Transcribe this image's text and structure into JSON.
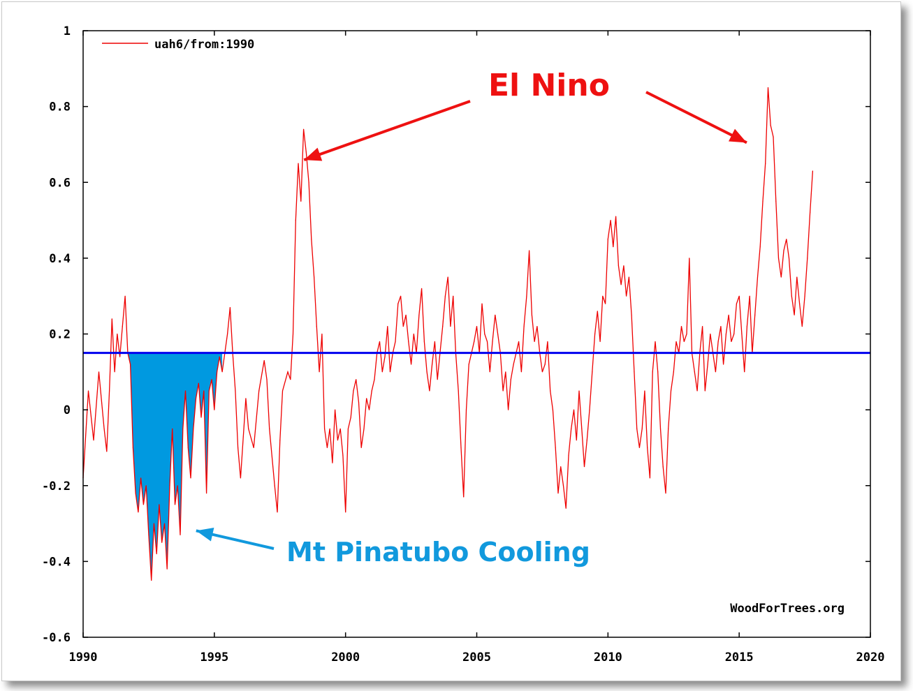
{
  "chart_data": {
    "type": "line",
    "xlim": [
      1990,
      2020
    ],
    "ylim": [
      -0.6,
      1.0
    ],
    "x_ticks": [
      "1990",
      "1995",
      "2000",
      "2005",
      "2010",
      "2015",
      "2020"
    ],
    "y_ticks": [
      "1",
      "0.8",
      "0.6",
      "0.4",
      "0.2",
      "0",
      "-0.2",
      "-0.4",
      "-0.6"
    ],
    "legend": {
      "label": "uah6/from:1990",
      "position": "top-left"
    },
    "credit": "WoodForTrees.org",
    "baseline": {
      "value": 0.15,
      "color": "#0000ee"
    },
    "fill_region": {
      "x_start": 1991.7,
      "x_end": 1995.3,
      "color": "#0099e0"
    },
    "annotations": {
      "el_nino": {
        "text": "El Nino",
        "color": "#ee1111",
        "points_to": [
          [
            1998.1,
            0.65
          ],
          [
            2015.5,
            0.69
          ]
        ]
      },
      "pinatubo": {
        "text": "Mt Pinatubo Cooling",
        "color": "#1199dd",
        "points_to": [
          [
            1994.2,
            -0.33
          ]
        ]
      }
    },
    "series": [
      {
        "name": "uah6/from:1990",
        "color": "#ee0000",
        "points": [
          [
            1990.0,
            -0.18
          ],
          [
            1990.2,
            0.05
          ],
          [
            1990.4,
            -0.08
          ],
          [
            1990.6,
            0.1
          ],
          [
            1990.8,
            -0.05
          ],
          [
            1990.9,
            -0.11
          ],
          [
            1991.0,
            0.05
          ],
          [
            1991.1,
            0.24
          ],
          [
            1991.2,
            0.1
          ],
          [
            1991.3,
            0.2
          ],
          [
            1991.4,
            0.14
          ],
          [
            1991.5,
            0.22
          ],
          [
            1991.6,
            0.3
          ],
          [
            1991.7,
            0.15
          ],
          [
            1991.8,
            0.12
          ],
          [
            1991.9,
            -0.1
          ],
          [
            1992.0,
            -0.22
          ],
          [
            1992.1,
            -0.27
          ],
          [
            1992.2,
            -0.18
          ],
          [
            1992.3,
            -0.25
          ],
          [
            1992.4,
            -0.2
          ],
          [
            1992.5,
            -0.33
          ],
          [
            1992.6,
            -0.45
          ],
          [
            1992.7,
            -0.3
          ],
          [
            1992.8,
            -0.38
          ],
          [
            1992.9,
            -0.25
          ],
          [
            1993.0,
            -0.35
          ],
          [
            1993.1,
            -0.3
          ],
          [
            1993.2,
            -0.42
          ],
          [
            1993.3,
            -0.2
          ],
          [
            1993.4,
            -0.05
          ],
          [
            1993.5,
            -0.25
          ],
          [
            1993.6,
            -0.2
          ],
          [
            1993.7,
            -0.33
          ],
          [
            1993.8,
            -0.05
          ],
          [
            1993.9,
            0.05
          ],
          [
            1994.0,
            -0.1
          ],
          [
            1994.1,
            -0.18
          ],
          [
            1994.2,
            -0.05
          ],
          [
            1994.3,
            0.03
          ],
          [
            1994.4,
            0.07
          ],
          [
            1994.5,
            -0.02
          ],
          [
            1994.6,
            0.05
          ],
          [
            1994.7,
            -0.22
          ],
          [
            1994.8,
            0.05
          ],
          [
            1994.9,
            0.08
          ],
          [
            1995.0,
            0.0
          ],
          [
            1995.1,
            0.1
          ],
          [
            1995.2,
            0.14
          ],
          [
            1995.3,
            0.1
          ],
          [
            1995.5,
            0.2
          ],
          [
            1995.6,
            0.27
          ],
          [
            1995.7,
            0.15
          ],
          [
            1995.8,
            0.05
          ],
          [
            1995.9,
            -0.1
          ],
          [
            1996.0,
            -0.18
          ],
          [
            1996.2,
            0.03
          ],
          [
            1996.3,
            -0.05
          ],
          [
            1996.5,
            -0.1
          ],
          [
            1996.7,
            0.05
          ],
          [
            1996.9,
            0.13
          ],
          [
            1997.0,
            0.08
          ],
          [
            1997.1,
            -0.05
          ],
          [
            1997.3,
            -0.2
          ],
          [
            1997.4,
            -0.27
          ],
          [
            1997.5,
            -0.08
          ],
          [
            1997.6,
            0.05
          ],
          [
            1997.8,
            0.1
          ],
          [
            1997.9,
            0.08
          ],
          [
            1998.0,
            0.2
          ],
          [
            1998.1,
            0.5
          ],
          [
            1998.2,
            0.65
          ],
          [
            1998.3,
            0.55
          ],
          [
            1998.4,
            0.74
          ],
          [
            1998.5,
            0.68
          ],
          [
            1998.6,
            0.6
          ],
          [
            1998.7,
            0.45
          ],
          [
            1998.8,
            0.35
          ],
          [
            1998.9,
            0.22
          ],
          [
            1999.0,
            0.1
          ],
          [
            1999.1,
            0.2
          ],
          [
            1999.2,
            -0.05
          ],
          [
            1999.3,
            -0.1
          ],
          [
            1999.4,
            -0.05
          ],
          [
            1999.5,
            -0.14
          ],
          [
            1999.6,
            0.0
          ],
          [
            1999.7,
            -0.08
          ],
          [
            1999.8,
            -0.05
          ],
          [
            1999.9,
            -0.12
          ],
          [
            2000.0,
            -0.27
          ],
          [
            2000.1,
            -0.05
          ],
          [
            2000.2,
            -0.02
          ],
          [
            2000.3,
            0.05
          ],
          [
            2000.4,
            0.08
          ],
          [
            2000.5,
            0.02
          ],
          [
            2000.6,
            -0.1
          ],
          [
            2000.7,
            -0.05
          ],
          [
            2000.8,
            0.03
          ],
          [
            2000.9,
            0.0
          ],
          [
            2001.0,
            0.05
          ],
          [
            2001.1,
            0.08
          ],
          [
            2001.2,
            0.15
          ],
          [
            2001.3,
            0.18
          ],
          [
            2001.4,
            0.1
          ],
          [
            2001.5,
            0.14
          ],
          [
            2001.6,
            0.22
          ],
          [
            2001.7,
            0.1
          ],
          [
            2001.8,
            0.15
          ],
          [
            2001.9,
            0.18
          ],
          [
            2002.0,
            0.28
          ],
          [
            2002.1,
            0.3
          ],
          [
            2002.2,
            0.22
          ],
          [
            2002.3,
            0.25
          ],
          [
            2002.4,
            0.18
          ],
          [
            2002.5,
            0.12
          ],
          [
            2002.6,
            0.2
          ],
          [
            2002.7,
            0.15
          ],
          [
            2002.8,
            0.25
          ],
          [
            2002.9,
            0.32
          ],
          [
            2003.0,
            0.18
          ],
          [
            2003.1,
            0.1
          ],
          [
            2003.2,
            0.05
          ],
          [
            2003.3,
            0.12
          ],
          [
            2003.4,
            0.18
          ],
          [
            2003.5,
            0.08
          ],
          [
            2003.6,
            0.15
          ],
          [
            2003.7,
            0.22
          ],
          [
            2003.8,
            0.3
          ],
          [
            2003.9,
            0.35
          ],
          [
            2004.0,
            0.22
          ],
          [
            2004.1,
            0.3
          ],
          [
            2004.2,
            0.15
          ],
          [
            2004.3,
            0.05
          ],
          [
            2004.4,
            -0.1
          ],
          [
            2004.5,
            -0.23
          ],
          [
            2004.6,
            0.0
          ],
          [
            2004.7,
            0.12
          ],
          [
            2004.8,
            0.15
          ],
          [
            2004.9,
            0.18
          ],
          [
            2005.0,
            0.22
          ],
          [
            2005.1,
            0.15
          ],
          [
            2005.2,
            0.28
          ],
          [
            2005.3,
            0.2
          ],
          [
            2005.4,
            0.18
          ],
          [
            2005.5,
            0.1
          ],
          [
            2005.6,
            0.18
          ],
          [
            2005.7,
            0.25
          ],
          [
            2005.8,
            0.2
          ],
          [
            2005.9,
            0.15
          ],
          [
            2006.0,
            0.05
          ],
          [
            2006.1,
            0.1
          ],
          [
            2006.2,
            0.0
          ],
          [
            2006.3,
            0.08
          ],
          [
            2006.4,
            0.12
          ],
          [
            2006.5,
            0.15
          ],
          [
            2006.6,
            0.18
          ],
          [
            2006.7,
            0.1
          ],
          [
            2006.8,
            0.22
          ],
          [
            2006.9,
            0.3
          ],
          [
            2007.0,
            0.42
          ],
          [
            2007.1,
            0.25
          ],
          [
            2007.2,
            0.18
          ],
          [
            2007.3,
            0.22
          ],
          [
            2007.4,
            0.15
          ],
          [
            2007.5,
            0.1
          ],
          [
            2007.6,
            0.12
          ],
          [
            2007.7,
            0.18
          ],
          [
            2007.8,
            0.05
          ],
          [
            2007.9,
            0.0
          ],
          [
            2008.0,
            -0.1
          ],
          [
            2008.1,
            -0.22
          ],
          [
            2008.2,
            -0.15
          ],
          [
            2008.3,
            -0.2
          ],
          [
            2008.4,
            -0.26
          ],
          [
            2008.5,
            -0.12
          ],
          [
            2008.6,
            -0.05
          ],
          [
            2008.7,
            0.0
          ],
          [
            2008.8,
            -0.08
          ],
          [
            2008.9,
            0.05
          ],
          [
            2009.0,
            -0.05
          ],
          [
            2009.1,
            -0.15
          ],
          [
            2009.2,
            -0.08
          ],
          [
            2009.3,
            0.0
          ],
          [
            2009.4,
            0.1
          ],
          [
            2009.5,
            0.2
          ],
          [
            2009.6,
            0.26
          ],
          [
            2009.7,
            0.18
          ],
          [
            2009.8,
            0.3
          ],
          [
            2009.9,
            0.28
          ],
          [
            2010.0,
            0.45
          ],
          [
            2010.1,
            0.5
          ],
          [
            2010.2,
            0.43
          ],
          [
            2010.3,
            0.51
          ],
          [
            2010.4,
            0.38
          ],
          [
            2010.5,
            0.33
          ],
          [
            2010.6,
            0.38
          ],
          [
            2010.7,
            0.3
          ],
          [
            2010.8,
            0.35
          ],
          [
            2010.9,
            0.25
          ],
          [
            2011.0,
            0.1
          ],
          [
            2011.1,
            -0.05
          ],
          [
            2011.2,
            -0.1
          ],
          [
            2011.3,
            -0.05
          ],
          [
            2011.4,
            0.05
          ],
          [
            2011.5,
            -0.1
          ],
          [
            2011.6,
            -0.18
          ],
          [
            2011.7,
            0.1
          ],
          [
            2011.8,
            0.18
          ],
          [
            2011.9,
            0.1
          ],
          [
            2012.0,
            -0.05
          ],
          [
            2012.1,
            -0.15
          ],
          [
            2012.2,
            -0.22
          ],
          [
            2012.3,
            -0.05
          ],
          [
            2012.4,
            0.05
          ],
          [
            2012.5,
            0.1
          ],
          [
            2012.6,
            0.18
          ],
          [
            2012.7,
            0.15
          ],
          [
            2012.8,
            0.22
          ],
          [
            2012.9,
            0.18
          ],
          [
            2013.0,
            0.2
          ],
          [
            2013.1,
            0.4
          ],
          [
            2013.2,
            0.15
          ],
          [
            2013.3,
            0.1
          ],
          [
            2013.4,
            0.05
          ],
          [
            2013.5,
            0.15
          ],
          [
            2013.6,
            0.22
          ],
          [
            2013.7,
            0.05
          ],
          [
            2013.8,
            0.12
          ],
          [
            2013.9,
            0.2
          ],
          [
            2014.0,
            0.15
          ],
          [
            2014.1,
            0.1
          ],
          [
            2014.2,
            0.18
          ],
          [
            2014.3,
            0.22
          ],
          [
            2014.4,
            0.12
          ],
          [
            2014.5,
            0.2
          ],
          [
            2014.6,
            0.25
          ],
          [
            2014.7,
            0.18
          ],
          [
            2014.8,
            0.2
          ],
          [
            2014.9,
            0.28
          ],
          [
            2015.0,
            0.3
          ],
          [
            2015.1,
            0.2
          ],
          [
            2015.2,
            0.1
          ],
          [
            2015.3,
            0.22
          ],
          [
            2015.4,
            0.3
          ],
          [
            2015.5,
            0.15
          ],
          [
            2015.6,
            0.25
          ],
          [
            2015.7,
            0.35
          ],
          [
            2015.8,
            0.43
          ],
          [
            2015.9,
            0.55
          ],
          [
            2016.0,
            0.65
          ],
          [
            2016.1,
            0.85
          ],
          [
            2016.2,
            0.75
          ],
          [
            2016.3,
            0.72
          ],
          [
            2016.4,
            0.55
          ],
          [
            2016.5,
            0.4
          ],
          [
            2016.6,
            0.35
          ],
          [
            2016.7,
            0.42
          ],
          [
            2016.8,
            0.45
          ],
          [
            2016.9,
            0.4
          ],
          [
            2017.0,
            0.3
          ],
          [
            2017.1,
            0.25
          ],
          [
            2017.2,
            0.35
          ],
          [
            2017.3,
            0.28
          ],
          [
            2017.4,
            0.22
          ],
          [
            2017.5,
            0.3
          ],
          [
            2017.6,
            0.4
          ],
          [
            2017.7,
            0.52
          ],
          [
            2017.8,
            0.63
          ]
        ]
      }
    ]
  }
}
